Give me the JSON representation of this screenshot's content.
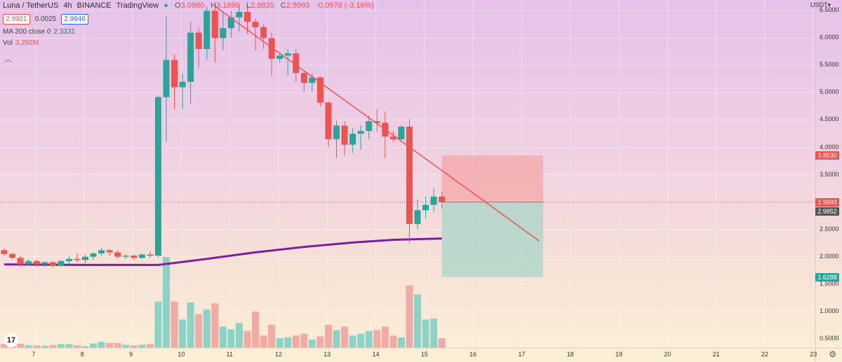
{
  "header": {
    "symbol": "Luna / TetherUS",
    "interval": "4h",
    "exchange": "BINANCE",
    "platform": "TradingView",
    "open_label": "O",
    "open": "3.0980",
    "high_label": "H",
    "high": "3.1899",
    "low_label": "L",
    "low": "2.8835",
    "close_label": "C",
    "close": "2.9993",
    "change": "-0.0978 (-3.16%)",
    "bid": "2.9921",
    "spread": "0.0025",
    "ask": "2.9946"
  },
  "indicators": {
    "ma_label": "MA 200 close 0",
    "ma_value": "2.3331",
    "vol_label": "Vol",
    "vol_value": "3.292M"
  },
  "currency": "USDT",
  "colors": {
    "up": "#26a69a",
    "down": "#ef5350",
    "ma": "#7b1fa2",
    "trend": "#ef5350",
    "stop_zone": "#f4a7a7",
    "target_zone": "#a8d5c8"
  },
  "icons": {
    "collapse": "chevron-up-icon",
    "logo": "tradingview-logo-icon",
    "settings": "gear-icon"
  },
  "logo_text": "17",
  "settings_glyph": "⚙",
  "chart_data": {
    "type": "candlestick",
    "y_axis": {
      "ticks": [
        "6.5000",
        "6.0000",
        "5.5000",
        "5.0000",
        "4.5000",
        "4.0000",
        "3.5000",
        "3.0000",
        "2.5000",
        "2.0000",
        "1.5000",
        "1.0000",
        "0.5000"
      ],
      "range": [
        0.42,
        6.62
      ]
    },
    "x_axis": {
      "ticks": [
        {
          "label": "7",
          "pos": 3.85
        },
        {
          "label": "8",
          "pos": 9.85
        },
        {
          "label": "9",
          "pos": 15.85
        },
        {
          "label": "10",
          "pos": 21.85
        },
        {
          "label": "11",
          "pos": 27.85
        },
        {
          "label": "12",
          "pos": 33.85
        },
        {
          "label": "13",
          "pos": 39.85
        },
        {
          "label": "14",
          "pos": 45.85
        },
        {
          "label": "15",
          "pos": 51.85
        },
        {
          "label": "16",
          "pos": 57.85
        },
        {
          "label": "17",
          "pos": 63.85
        },
        {
          "label": "18",
          "pos": 69.85
        },
        {
          "label": "19",
          "pos": 75.85
        },
        {
          "label": "20",
          "pos": 81.85
        },
        {
          "label": "21",
          "pos": 87.85
        },
        {
          "label": "22",
          "pos": 93.85
        },
        {
          "label": "23",
          "pos": 99.85
        }
      ]
    },
    "candles": [
      {
        "o": 2.12,
        "h": 2.15,
        "l": 2.02,
        "c": 2.05,
        "v": 22
      },
      {
        "o": 2.05,
        "h": 2.08,
        "l": 1.95,
        "c": 1.98,
        "v": 20
      },
      {
        "o": 1.98,
        "h": 2.02,
        "l": 1.82,
        "c": 1.86,
        "v": 24
      },
      {
        "o": 1.86,
        "h": 1.96,
        "l": 1.84,
        "c": 1.92,
        "v": 15
      },
      {
        "o": 1.92,
        "h": 1.95,
        "l": 1.82,
        "c": 1.86,
        "v": 14
      },
      {
        "o": 1.86,
        "h": 1.92,
        "l": 1.82,
        "c": 1.9,
        "v": 13
      },
      {
        "o": 1.9,
        "h": 1.92,
        "l": 1.8,
        "c": 1.84,
        "v": 16
      },
      {
        "o": 1.84,
        "h": 1.94,
        "l": 1.82,
        "c": 1.92,
        "v": 22
      },
      {
        "o": 1.92,
        "h": 2.02,
        "l": 1.86,
        "c": 1.96,
        "v": 22
      },
      {
        "o": 1.96,
        "h": 2.06,
        "l": 1.9,
        "c": 1.94,
        "v": 15
      },
      {
        "o": 1.94,
        "h": 2.04,
        "l": 1.88,
        "c": 2.0,
        "v": 10
      },
      {
        "o": 2.0,
        "h": 2.08,
        "l": 1.94,
        "c": 2.06,
        "v": 25
      },
      {
        "o": 2.06,
        "h": 2.16,
        "l": 2.02,
        "c": 2.12,
        "v": 35
      },
      {
        "o": 2.12,
        "h": 2.14,
        "l": 2.02,
        "c": 2.08,
        "v": 28
      },
      {
        "o": 2.08,
        "h": 2.12,
        "l": 1.96,
        "c": 2.0,
        "v": 28
      },
      {
        "o": 2.0,
        "h": 2.04,
        "l": 1.96,
        "c": 2.02,
        "v": 18
      },
      {
        "o": 2.02,
        "h": 2.04,
        "l": 1.94,
        "c": 1.98,
        "v": 15
      },
      {
        "o": 1.98,
        "h": 2.06,
        "l": 1.96,
        "c": 2.04,
        "v": 18
      },
      {
        "o": 2.04,
        "h": 2.1,
        "l": 1.98,
        "c": 2.02,
        "v": 22
      },
      {
        "o": 2.02,
        "h": 4.95,
        "l": 1.98,
        "c": 4.92,
        "v": 260
      },
      {
        "o": 4.92,
        "h": 6.4,
        "l": 4.1,
        "c": 5.6,
        "v": 510
      },
      {
        "o": 5.6,
        "h": 5.7,
        "l": 4.7,
        "c": 5.1,
        "v": 260
      },
      {
        "o": 5.1,
        "h": 5.35,
        "l": 4.7,
        "c": 5.2,
        "v": 160
      },
      {
        "o": 5.2,
        "h": 6.3,
        "l": 4.8,
        "c": 6.1,
        "v": 255
      },
      {
        "o": 6.1,
        "h": 6.2,
        "l": 5.45,
        "c": 5.8,
        "v": 190
      },
      {
        "o": 5.8,
        "h": 6.58,
        "l": 5.6,
        "c": 6.5,
        "v": 215
      },
      {
        "o": 6.5,
        "h": 6.6,
        "l": 5.55,
        "c": 6.0,
        "v": 250
      },
      {
        "o": 6.0,
        "h": 6.5,
        "l": 5.78,
        "c": 6.18,
        "v": 120
      },
      {
        "o": 6.18,
        "h": 6.5,
        "l": 6.0,
        "c": 6.38,
        "v": 105
      },
      {
        "o": 6.38,
        "h": 6.6,
        "l": 6.12,
        "c": 6.48,
        "v": 140
      },
      {
        "o": 6.48,
        "h": 6.58,
        "l": 6.08,
        "c": 6.3,
        "v": 95
      },
      {
        "o": 6.3,
        "h": 6.35,
        "l": 5.78,
        "c": 6.2,
        "v": 205
      },
      {
        "o": 6.2,
        "h": 6.25,
        "l": 5.8,
        "c": 6.0,
        "v": 70
      },
      {
        "o": 6.0,
        "h": 6.1,
        "l": 5.3,
        "c": 5.62,
        "v": 130
      },
      {
        "o": 5.62,
        "h": 5.72,
        "l": 5.55,
        "c": 5.68,
        "v": 55
      },
      {
        "o": 5.68,
        "h": 5.8,
        "l": 5.32,
        "c": 5.72,
        "v": 60
      },
      {
        "o": 5.72,
        "h": 5.8,
        "l": 5.2,
        "c": 5.36,
        "v": 70
      },
      {
        "o": 5.36,
        "h": 5.4,
        "l": 5.02,
        "c": 5.18,
        "v": 80
      },
      {
        "o": 5.18,
        "h": 5.35,
        "l": 5.02,
        "c": 5.28,
        "v": 48
      },
      {
        "o": 5.28,
        "h": 5.3,
        "l": 4.75,
        "c": 4.82,
        "v": 65
      },
      {
        "o": 4.82,
        "h": 4.85,
        "l": 4.0,
        "c": 4.15,
        "v": 130
      },
      {
        "o": 4.15,
        "h": 4.5,
        "l": 3.8,
        "c": 4.4,
        "v": 100
      },
      {
        "o": 4.4,
        "h": 4.48,
        "l": 3.85,
        "c": 4.05,
        "v": 120
      },
      {
        "o": 4.05,
        "h": 4.35,
        "l": 3.9,
        "c": 4.25,
        "v": 70
      },
      {
        "o": 4.25,
        "h": 4.4,
        "l": 3.95,
        "c": 4.3,
        "v": 80
      },
      {
        "o": 4.3,
        "h": 4.58,
        "l": 4.15,
        "c": 4.48,
        "v": 95
      },
      {
        "o": 4.48,
        "h": 4.7,
        "l": 4.28,
        "c": 4.45,
        "v": 100
      },
      {
        "o": 4.45,
        "h": 4.65,
        "l": 3.8,
        "c": 4.2,
        "v": 120
      },
      {
        "o": 4.2,
        "h": 4.3,
        "l": 4.1,
        "c": 4.15,
        "v": 70
      },
      {
        "o": 4.15,
        "h": 4.4,
        "l": 4.12,
        "c": 4.38,
        "v": 60
      },
      {
        "o": 4.38,
        "h": 4.52,
        "l": 2.25,
        "c": 2.6,
        "v": 350
      },
      {
        "o": 2.6,
        "h": 3.05,
        "l": 2.5,
        "c": 2.85,
        "v": 300
      },
      {
        "o": 2.85,
        "h": 3.1,
        "l": 2.7,
        "c": 2.95,
        "v": 160
      },
      {
        "o": 2.95,
        "h": 3.25,
        "l": 2.82,
        "c": 3.1,
        "v": 165
      },
      {
        "o": 3.1,
        "h": 3.19,
        "l": 2.88,
        "c": 2.9993,
        "v": 55
      }
    ],
    "ma200": [
      {
        "x": 0,
        "y": 1.86
      },
      {
        "x": 10,
        "y": 1.85
      },
      {
        "x": 19,
        "y": 1.85
      },
      {
        "x": 25,
        "y": 1.96
      },
      {
        "x": 31,
        "y": 2.08
      },
      {
        "x": 37,
        "y": 2.18
      },
      {
        "x": 43,
        "y": 2.26
      },
      {
        "x": 48,
        "y": 2.31
      },
      {
        "x": 54,
        "y": 2.3331
      }
    ],
    "trendline": [
      {
        "x": 26,
        "y": 6.58
      },
      {
        "x": 66,
        "y": 2.29
      }
    ],
    "position": {
      "type": "short",
      "x_start": 54,
      "x_end": 66.5,
      "entry": 2.9993,
      "stop": 3.853,
      "target": 1.6288
    },
    "price_tags": [
      {
        "label": "3.8530",
        "value": 3.853,
        "color": "#ef5350"
      },
      {
        "label": "2.9993",
        "value": 2.9993,
        "color": "#ef5350"
      },
      {
        "label": "2.9852",
        "value": 2.9852,
        "color": "#555555"
      },
      {
        "label": "1.6288",
        "value": 1.6288,
        "color": "#26a69a"
      }
    ]
  }
}
